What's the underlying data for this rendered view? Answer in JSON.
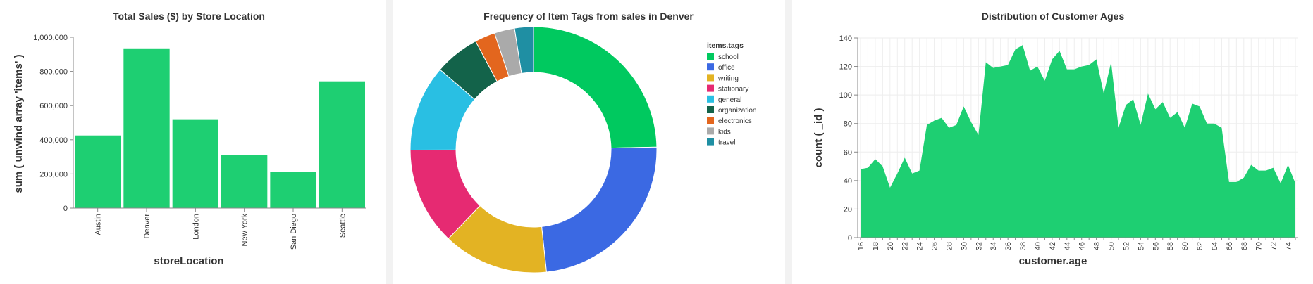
{
  "chart_data": [
    {
      "type": "bar",
      "title": "Total Sales ($) by Store Location",
      "xlabel": "storeLocation",
      "ylabel": "sum ( unwind array 'items' )",
      "categories": [
        "Austin",
        "Denver",
        "London",
        "New York",
        "San Diego",
        "Seattle"
      ],
      "values": [
        425000,
        935000,
        520000,
        312000,
        213000,
        742000
      ],
      "ylim": [
        0,
        1000000
      ],
      "yticks": [
        0,
        200000,
        400000,
        600000,
        800000,
        1000000
      ],
      "ytick_labels": [
        "0",
        "200,000",
        "400,000",
        "600,000",
        "800,000",
        "1,000,000"
      ],
      "color": "#1ecf72",
      "grid": false
    },
    {
      "type": "pie",
      "title": "Frequency of Item Tags from sales in Denver",
      "legend_title": "items.tags",
      "legend_position": "right",
      "labels": [
        "school",
        "office",
        "writing",
        "stationary",
        "general",
        "organization",
        "electronics",
        "kids",
        "travel"
      ],
      "values": [
        25.0,
        24.0,
        14.0,
        13.0,
        11.5,
        6.0,
        2.7,
        2.7,
        2.5
      ],
      "colors": [
        "#00c95f",
        "#3b69e3",
        "#e3b323",
        "#e62a72",
        "#29bfe3",
        "#13634a",
        "#e3661e",
        "#aaaaaa",
        "#1f8fa3"
      ],
      "donut": true
    },
    {
      "type": "area",
      "title": "Distribution of Customer Ages",
      "xlabel": "customer.age",
      "ylabel": "count ( _id )",
      "x": [
        16,
        17,
        18,
        19,
        20,
        21,
        22,
        23,
        24,
        25,
        26,
        27,
        28,
        29,
        30,
        31,
        32,
        33,
        34,
        35,
        36,
        37,
        38,
        39,
        40,
        41,
        42,
        43,
        44,
        45,
        46,
        47,
        48,
        49,
        50,
        51,
        52,
        53,
        54,
        55,
        56,
        57,
        58,
        59,
        60,
        61,
        62,
        63,
        64,
        65,
        66,
        67,
        68,
        69,
        70,
        71,
        72,
        73,
        74,
        75
      ],
      "values": [
        48,
        49,
        55,
        50,
        35,
        45,
        56,
        45,
        47,
        79,
        82,
        84,
        77,
        79,
        92,
        81,
        72,
        123,
        119,
        120,
        121,
        132,
        135,
        117,
        120,
        110,
        125,
        131,
        118,
        118,
        120,
        121,
        125,
        101,
        123,
        77,
        93,
        97,
        79,
        101,
        90,
        95,
        84,
        88,
        77,
        94,
        92,
        80,
        80,
        77,
        39,
        39,
        42,
        51,
        47,
        47,
        49,
        38,
        51,
        38
      ],
      "ylim": [
        0,
        140
      ],
      "yticks": [
        0,
        20,
        40,
        60,
        80,
        100,
        120,
        140
      ],
      "xticks": [
        16,
        18,
        20,
        22,
        24,
        26,
        28,
        30,
        32,
        34,
        36,
        38,
        40,
        42,
        44,
        46,
        48,
        50,
        52,
        54,
        56,
        58,
        60,
        62,
        64,
        66,
        68,
        70,
        72,
        74
      ],
      "color": "#1ecf72",
      "grid": true
    }
  ]
}
